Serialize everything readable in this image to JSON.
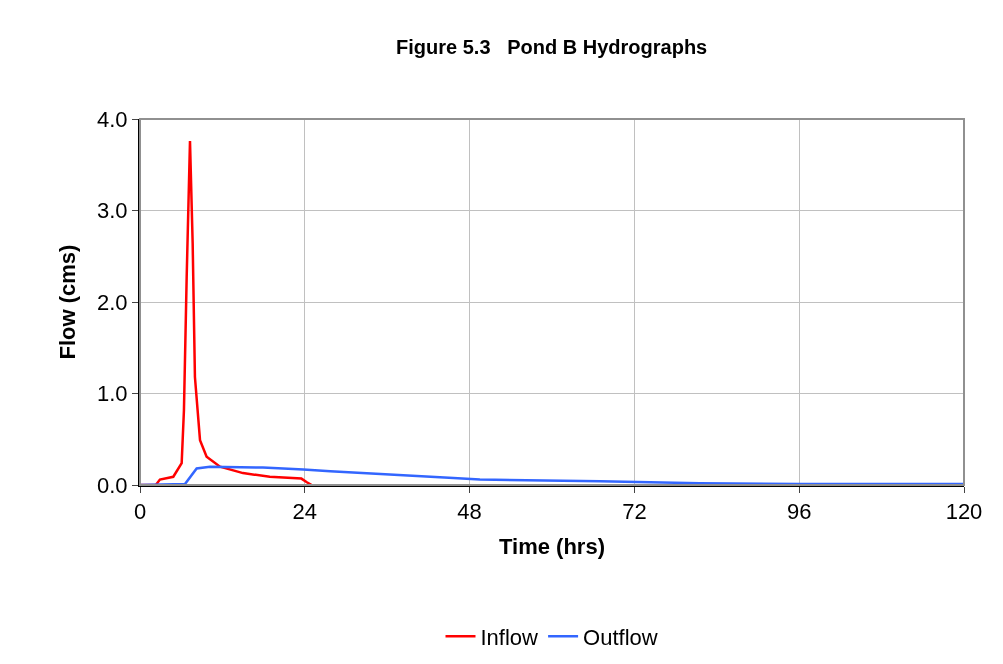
{
  "chart_data": {
    "type": "line",
    "title": "Figure 5.3   Pond B Hydrographs",
    "xlabel": "Time (hrs)",
    "ylabel": "Flow (cms)",
    "xlim": [
      0,
      120
    ],
    "xticks": [
      0,
      24,
      48,
      72,
      96,
      120
    ],
    "ylim": [
      0,
      4.0
    ],
    "yticks": [
      {
        "value": 0,
        "label": "0.0"
      },
      {
        "value": 1,
        "label": "1.0"
      },
      {
        "value": 2,
        "label": "2.0"
      },
      {
        "value": 3,
        "label": "3.0"
      },
      {
        "value": 4,
        "label": "4.0"
      }
    ],
    "grid": true,
    "legend": "bottom",
    "marker": "none",
    "line_style": "solid",
    "series": [
      {
        "name": "Inflow",
        "color": "#ff0000",
        "x": [
          0,
          2.3,
          2.9,
          4.85,
          6.07,
          6.4,
          6.8,
          7.28,
          7.67,
          8.0,
          8.74,
          9.7,
          11.65,
          15.0,
          18.9,
          23.5,
          24.3,
          25.0
        ],
        "values": [
          0,
          0,
          0.06,
          0.09,
          0.24,
          0.82,
          2.28,
          3.76,
          2.64,
          1.18,
          0.49,
          0.31,
          0.2,
          0.13,
          0.09,
          0.07,
          0.03,
          0.0
        ]
      },
      {
        "name": "Outflow",
        "color": "#3366ff",
        "x": [
          0,
          6.55,
          8.25,
          10.2,
          17.9,
          23.8,
          27.7,
          45,
          49.5,
          67,
          81.5,
          96,
          120
        ],
        "values": [
          0,
          0.01,
          0.18,
          0.2,
          0.19,
          0.17,
          0.15,
          0.08,
          0.06,
          0.04,
          0.02,
          0.01,
          0.01
        ]
      }
    ]
  }
}
